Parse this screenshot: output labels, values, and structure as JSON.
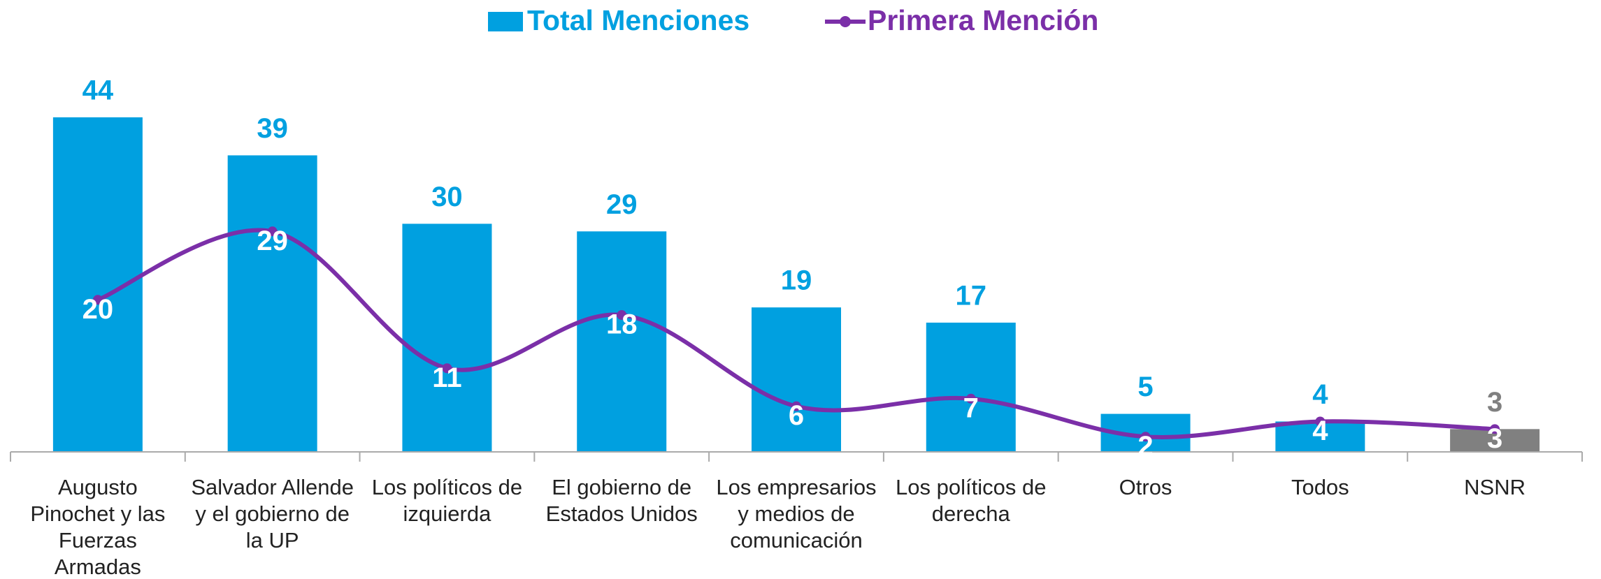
{
  "chart_data": {
    "type": "bar-line",
    "categories": [
      "Augusto Pinochet y las Fuerzas Armadas",
      "Salvador Allende y el gobierno de la UP",
      "Los políticos de izquierda",
      "El gobierno de Estados Unidos",
      "Los empresarios y medios de comunicación",
      "Los políticos de derecha",
      "Otros",
      "Todos",
      "NSNR"
    ],
    "series": [
      {
        "name": "Total Menciones",
        "type": "bar",
        "color": "#00a0e0",
        "point_colors": [
          "#00a0e0",
          "#00a0e0",
          "#00a0e0",
          "#00a0e0",
          "#00a0e0",
          "#00a0e0",
          "#00a0e0",
          "#00a0e0",
          "#808080"
        ],
        "values": [
          44,
          39,
          30,
          29,
          19,
          17,
          5,
          4,
          3
        ]
      },
      {
        "name": "Primera Mención",
        "type": "line",
        "color": "#7b2fa8",
        "values": [
          20,
          29,
          11,
          18,
          6,
          7,
          2,
          4,
          3
        ]
      }
    ],
    "legend": "top"
  }
}
